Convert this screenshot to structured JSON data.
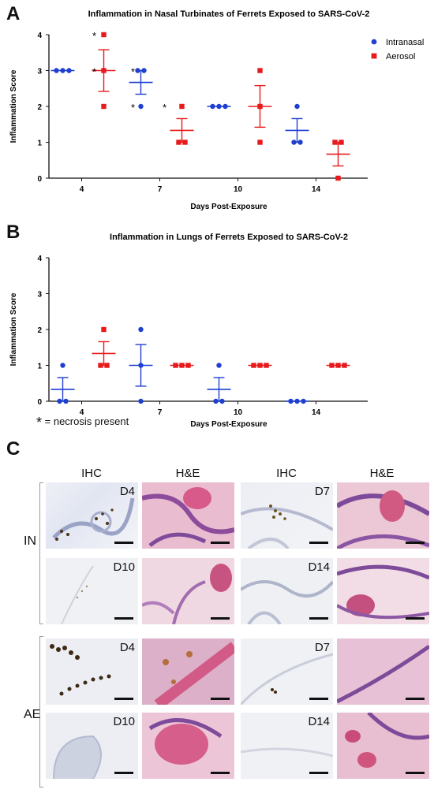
{
  "panels": {
    "a_letter": "A",
    "b_letter": "B",
    "c_letter": "C"
  },
  "footnote": "= necrosis present",
  "footnote_star": "*",
  "colors": {
    "intranasal": "#1f3fd1",
    "aerosol": "#e8191b"
  },
  "chart_data": [
    {
      "type": "scatter",
      "title": "Inflammation in Nasal Turbinates of Ferrets Exposed to SARS-CoV-2",
      "xlabel": "Days Post-Exposure",
      "ylabel": "Inflammation Score",
      "categories": [
        "4",
        "7",
        "10",
        "14"
      ],
      "ylim": [
        0,
        4
      ],
      "yticks": [
        "0",
        "1",
        "2",
        "3",
        "4"
      ],
      "legend": "top-right",
      "series": [
        {
          "name": "Intranasal",
          "color": "#1f3fd1",
          "marker": "circle",
          "points": [
            [
              3,
              3,
              3
            ],
            [
              3,
              3,
              2
            ],
            [
              2,
              2,
              2
            ],
            [
              2,
              1,
              1
            ]
          ],
          "mean": [
            3,
            2.67,
            2,
            1.33
          ],
          "sem": [
            0,
            0.33,
            0,
            0.33
          ]
        },
        {
          "name": "Aerosol",
          "color": "#e8191b",
          "marker": "square",
          "points": [
            [
              4,
              3,
              2
            ],
            [
              2,
              1,
              1
            ],
            [
              3,
              2,
              1
            ],
            [
              1,
              1,
              0
            ]
          ],
          "mean": [
            3,
            1.33,
            2,
            0.67
          ],
          "sem": [
            0.58,
            0.33,
            0.58,
            0.33
          ]
        }
      ],
      "necrosis_labels": [
        "*",
        "*",
        "*",
        "*",
        "*"
      ]
    },
    {
      "type": "scatter",
      "title": "Inflammation in Lungs of Ferrets Exposed to SARS-CoV-2",
      "xlabel": "Days Post-Exposure",
      "ylabel": "Inflammation Score",
      "categories": [
        "4",
        "7",
        "10",
        "14"
      ],
      "ylim": [
        0,
        4
      ],
      "yticks": [
        "0",
        "1",
        "2",
        "3",
        "4"
      ],
      "series": [
        {
          "name": "Intranasal",
          "color": "#1f3fd1",
          "marker": "circle",
          "points": [
            [
              1,
              0,
              0
            ],
            [
              2,
              1,
              0
            ],
            [
              1,
              0,
              0
            ],
            [
              0,
              0,
              0
            ]
          ],
          "mean": [
            0.33,
            1,
            0.33,
            0
          ],
          "sem": [
            0.33,
            0.58,
            0.33,
            0
          ]
        },
        {
          "name": "Aerosol",
          "color": "#e8191b",
          "marker": "square",
          "points": [
            [
              2,
              1,
              1
            ],
            [
              1,
              1,
              1
            ],
            [
              1,
              1,
              1
            ],
            [
              1,
              1,
              1
            ]
          ],
          "mean": [
            1.33,
            1,
            1,
            1
          ],
          "sem": [
            0.33,
            0,
            0,
            0
          ]
        }
      ]
    }
  ],
  "micrographs": {
    "column_titles": [
      "IHC",
      "H&E",
      "IHC",
      "H&E"
    ],
    "row_groups": [
      "IN",
      "AE"
    ],
    "tile_labels": [
      "D4",
      "D7",
      "D10",
      "D14",
      "D4",
      "D7",
      "D10",
      "D14"
    ]
  }
}
